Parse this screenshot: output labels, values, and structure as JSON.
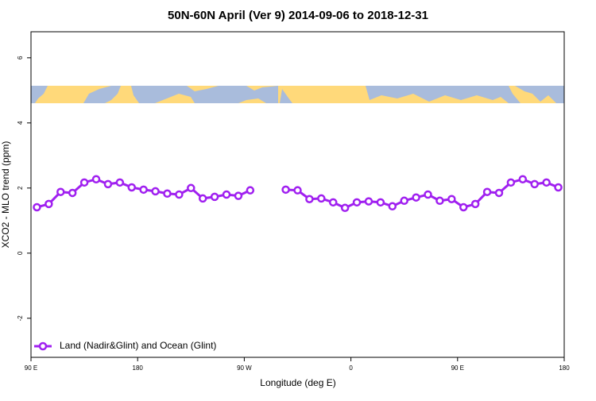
{
  "chart_data": {
    "type": "line",
    "title": "50N-60N April (Ver 9)   2014-09-06 to 2018-12-31",
    "x_label": "Longitude (deg E)",
    "y_label": "XCO2 - MLO trend (ppm)",
    "x": [
      -265,
      -255,
      -245,
      -235,
      -225,
      -215,
      -205,
      -195,
      -185,
      -175,
      -165,
      -155,
      -145,
      -135,
      -125,
      -115,
      -105,
      -95,
      -85,
      -75,
      -65,
      -55,
      -45,
      -35,
      -25,
      -15,
      -5,
      5,
      15,
      25,
      35,
      45,
      55,
      65,
      75,
      85,
      95,
      105,
      115,
      125,
      135,
      145,
      155,
      165,
      175
    ],
    "series": [
      {
        "name": "Land (Nadir&Glint) and Ocean (Glint)",
        "color": "#a020f0",
        "values": [
          1.41,
          1.51,
          1.88,
          1.85,
          2.17,
          2.27,
          2.12,
          2.17,
          2.02,
          1.95,
          1.9,
          1.83,
          1.8,
          2.0,
          1.68,
          1.73,
          1.8,
          1.76,
          1.93,
          null,
          null,
          1.95,
          1.93,
          1.66,
          1.68,
          1.56,
          1.39,
          1.56,
          1.59,
          1.56,
          1.44,
          1.61,
          1.71,
          1.8,
          1.61,
          1.66,
          1.41,
          1.51,
          1.88,
          1.85,
          2.17,
          2.27,
          2.12,
          2.17,
          2.02
        ]
      }
    ],
    "xlim": [
      -270,
      180
    ],
    "xticks": [
      {
        "value": -270,
        "label": "90 E"
      },
      {
        "value": -180,
        "label": "180"
      },
      {
        "value": -90,
        "label": "90 W"
      },
      0,
      {
        "value": 90,
        "label": "90 E"
      },
      180
    ],
    "ylim": [
      -3.2,
      6.8
    ],
    "yticks": [
      -2,
      0,
      2,
      4,
      6
    ],
    "legend": "bottom-left"
  }
}
